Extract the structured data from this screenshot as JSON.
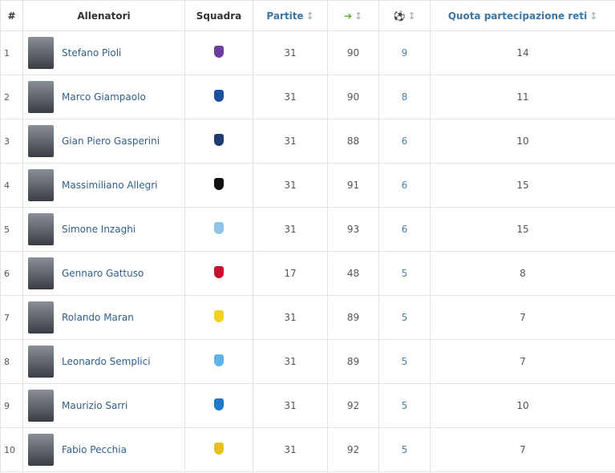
{
  "table": {
    "header": {
      "rank": "#",
      "coach": "Allenatori",
      "team": "Squadra",
      "matches": "Partite",
      "share": "Quota partecipazione reti"
    },
    "rows": [
      [
        1,
        "Stefano Pioli",
        31,
        90,
        9,
        14
      ],
      [
        2,
        "Marco Giampaolo",
        31,
        90,
        8,
        11
      ],
      [
        3,
        "Gian Piero Gasperini",
        31,
        88,
        6,
        10
      ],
      [
        4,
        "Massimiliano Allegri",
        31,
        91,
        6,
        15
      ],
      [
        5,
        "Simone Inzaghi",
        31,
        93,
        6,
        15
      ],
      [
        6,
        "Gennaro Gattuso",
        17,
        48,
        5,
        8
      ],
      [
        7,
        "Rolando Maran",
        31,
        89,
        5,
        7
      ],
      [
        8,
        "Leonardo Semplici",
        31,
        89,
        5,
        7
      ],
      [
        9,
        "Maurizio Sarri",
        31,
        92,
        5,
        10
      ],
      [
        10,
        "Fabio Pecchia",
        31,
        92,
        5,
        7
      ]
    ]
  }
}
